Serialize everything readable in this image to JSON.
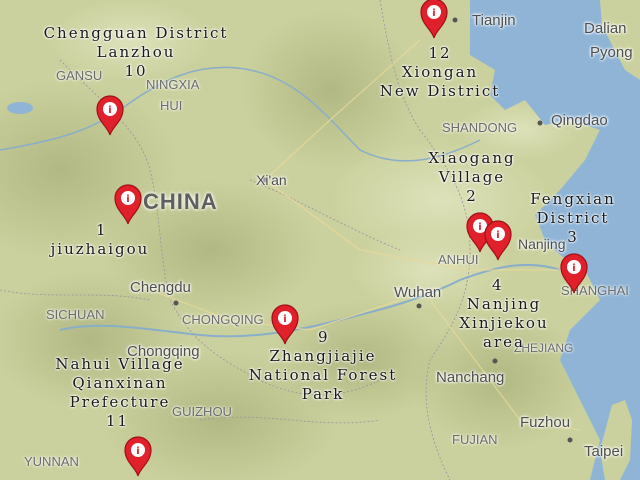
{
  "base_labels": {
    "tianjin": "Tianjin",
    "dalian": "Dalian",
    "pyong": "Pyong",
    "gansu": "GANSU",
    "ningxia": "NINGXIA",
    "hui": "HUI",
    "shandong": "SHANDONG",
    "qingdao": "Qingdao",
    "xian": "Xi'an",
    "china": "CHINA",
    "anhui": "ANHUI",
    "nanjing": "Nanjing",
    "shanghai": "SHANGHAI",
    "chengdu": "Chengdu",
    "wuhan": "Wuhan",
    "sichuan": "SICHUAN",
    "chongqing_prov": "CHONGQING",
    "chongqing": "Chongqing",
    "zhejiang": "ZHEJIANG",
    "nanchang": "Nanchang",
    "guizhou": "GUIZHOU",
    "fujian": "FUJIAN",
    "fuzhou": "Fuzhou",
    "yunnan": "YUNNAN",
    "taipei": "Taipei"
  },
  "markers": [
    {
      "id": "1",
      "lines": [
        "1",
        "jiuzhaigou"
      ]
    },
    {
      "id": "2",
      "lines": [
        "Xiaogang",
        "Village",
        "2"
      ]
    },
    {
      "id": "3",
      "lines": [
        "Fengxian",
        "District",
        "3"
      ]
    },
    {
      "id": "4",
      "lines": [
        "4",
        "Nanjing",
        "Xinjiekou",
        "area"
      ]
    },
    {
      "id": "9",
      "lines": [
        "9",
        "Zhangjiajie",
        "National Forest",
        "Park"
      ]
    },
    {
      "id": "10",
      "lines": [
        "Chengguan District",
        "Lanzhou",
        "10"
      ]
    },
    {
      "id": "11",
      "lines": [
        "Nahui Village",
        "Qianxinan",
        "Prefecture",
        "11"
      ]
    },
    {
      "id": "12",
      "lines": [
        "12",
        "Xiongan",
        "New District"
      ]
    }
  ],
  "colors": {
    "sea": "#8fb4d6",
    "land": "#cdd3a1",
    "marker": "#e0202a"
  }
}
